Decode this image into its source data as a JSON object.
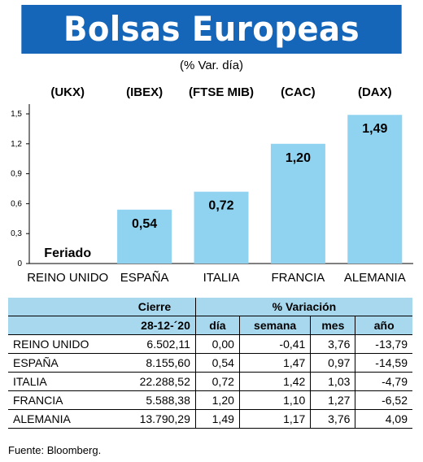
{
  "title": "Bolsas Europeas",
  "subtitle": "(% Var. día)",
  "source": "Fuente: Bloomberg.",
  "colors": {
    "title_bg": "#1565b8",
    "bar": "#8fd3f0",
    "table_header": "#a8d8ee"
  },
  "chart_data": {
    "type": "bar",
    "ylim": [
      0,
      1.5
    ],
    "y_ticks": [
      "0",
      "0,3",
      "0,6",
      "0,9",
      "1,2",
      "1,5"
    ],
    "y_tick_values": [
      0,
      0.3,
      0.6,
      0.9,
      1.2,
      1.5
    ],
    "tickers": [
      "(UKX)",
      "(IBEX)",
      "(FTSE MIB)",
      "(CAC)",
      "(DAX)"
    ],
    "categories": [
      "REINO UNIDO",
      "ESPAÑA",
      "ITALIA",
      "FRANCIA",
      "ALEMANIA"
    ],
    "values": [
      0,
      0.54,
      0.72,
      1.2,
      1.49
    ],
    "value_labels": [
      "Feriado",
      "0,54",
      "0,72",
      "1,20",
      "1,49"
    ],
    "grid": false
  },
  "table": {
    "group_headers": {
      "cierre": "Cierre",
      "variacion": "% Variación"
    },
    "columns": [
      "28-12-´20",
      "día",
      "semana",
      "mes",
      "año"
    ],
    "rows": [
      {
        "name": "REINO UNIDO",
        "cierre": "6.502,11",
        "dia": "0,00",
        "semana": "-0,41",
        "mes": "3,76",
        "ano": "-13,79"
      },
      {
        "name": "ESPAÑA",
        "cierre": "8.155,60",
        "dia": "0,54",
        "semana": "1,47",
        "mes": "0,97",
        "ano": "-14,59"
      },
      {
        "name": "ITALIA",
        "cierre": "22.288,52",
        "dia": "0,72",
        "semana": "1,42",
        "mes": "1,03",
        "ano": "-4,79"
      },
      {
        "name": "FRANCIA",
        "cierre": "5.588,38",
        "dia": "1,20",
        "semana": "1,10",
        "mes": "1,27",
        "ano": "-6,52"
      },
      {
        "name": "ALEMANIA",
        "cierre": "13.790,29",
        "dia": "1,49",
        "semana": "1,17",
        "mes": "3,76",
        "ano": "4,09"
      }
    ]
  }
}
